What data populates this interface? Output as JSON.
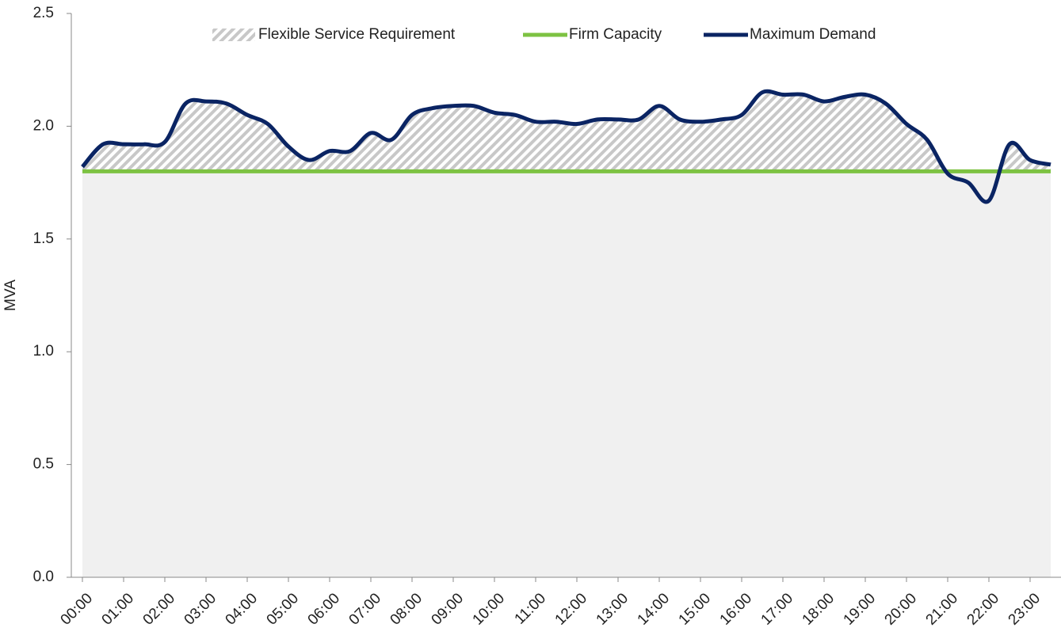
{
  "chart_data": {
    "type": "line",
    "y_label": "MVA",
    "categories": [
      "00:00",
      null,
      "01:00",
      null,
      "02:00",
      null,
      "03:00",
      null,
      "04:00",
      null,
      "05:00",
      null,
      "06:00",
      null,
      "07:00",
      null,
      "08:00",
      null,
      "09:00",
      null,
      "10:00",
      null,
      "11:00",
      null,
      "12:00",
      null,
      "13:00",
      null,
      "14:00",
      null,
      "15:00",
      null,
      "16:00",
      null,
      "17:00",
      null,
      "18:00",
      null,
      "19:00",
      null,
      "20:00",
      null,
      "21:00",
      null,
      "22:00",
      null,
      "23:00",
      null
    ],
    "ylim": [
      0,
      2.5
    ],
    "yticks": [
      {
        "value": 0,
        "label": "0.0"
      },
      0.5,
      {
        "value": 1,
        "label": "1.0"
      },
      1.5,
      {
        "value": 2,
        "label": "2.0"
      },
      2.5
    ],
    "area_name": "Flexible Service Requirement",
    "area_color": "#c8c8c8",
    "below_color": "#f0f0f0",
    "series": [
      {
        "name": "Firm Capacity",
        "color": "#7dc242",
        "values": [
          1.8,
          1.8,
          1.8,
          1.8,
          1.8,
          1.8,
          1.8,
          1.8,
          1.8,
          1.8,
          1.8,
          1.8,
          1.8,
          1.8,
          1.8,
          1.8,
          1.8,
          1.8,
          1.8,
          1.8,
          1.8,
          1.8,
          1.8,
          1.8,
          1.8,
          1.8,
          1.8,
          1.8,
          1.8,
          1.8,
          1.8,
          1.8,
          1.8,
          1.8,
          1.8,
          1.8,
          1.8,
          1.8,
          1.8,
          1.8,
          1.8,
          1.8,
          1.8,
          1.8,
          1.8,
          1.8,
          1.8,
          1.8
        ]
      },
      {
        "name": "Maximum Demand",
        "color": "#0a2463",
        "values": [
          1.82,
          1.92,
          1.92,
          1.92,
          1.93,
          2.1,
          2.11,
          2.1,
          2.05,
          2.01,
          1.91,
          1.85,
          1.89,
          1.89,
          1.97,
          1.94,
          2.05,
          2.08,
          2.09,
          2.09,
          2.06,
          2.05,
          2.02,
          2.02,
          2.01,
          2.03,
          2.03,
          2.03,
          2.09,
          2.03,
          2.02,
          2.03,
          2.05,
          2.15,
          2.14,
          2.14,
          2.11,
          2.13,
          2.14,
          2.1,
          2.01,
          1.94,
          1.79,
          1.75,
          1.67,
          1.92,
          1.85,
          1.83
        ]
      }
    ]
  }
}
